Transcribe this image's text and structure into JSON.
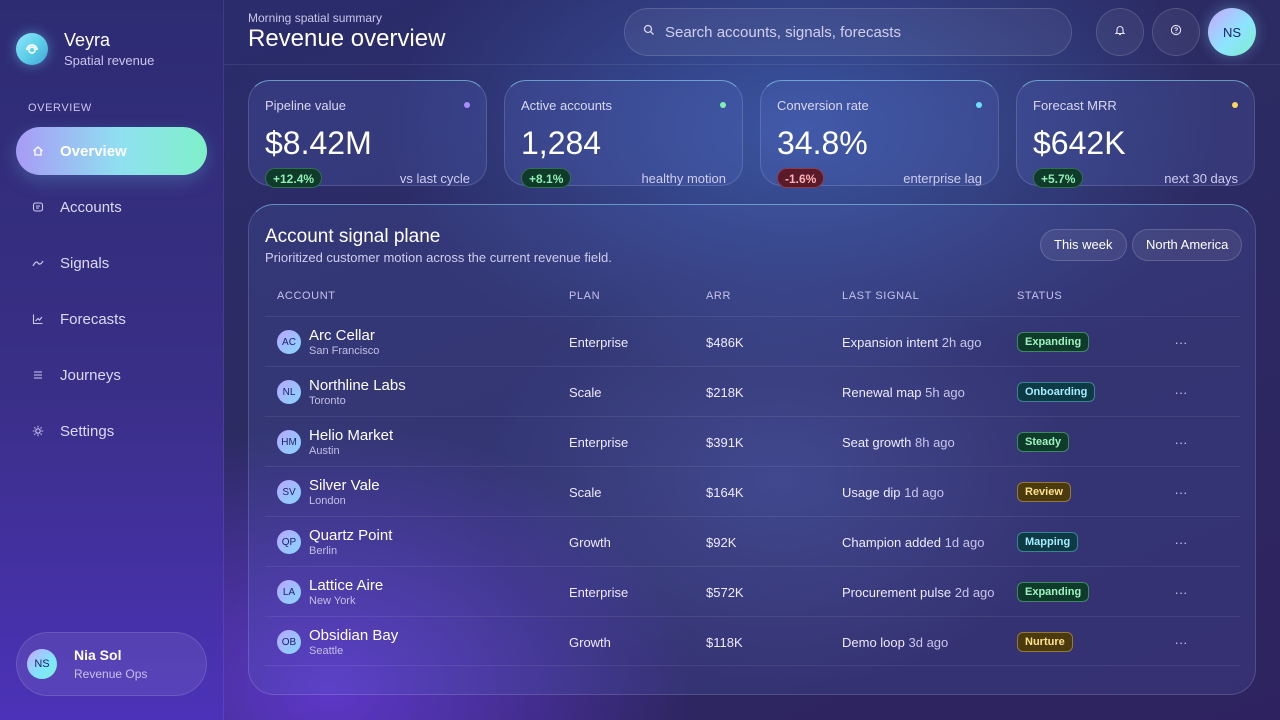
{
  "brand": {
    "name": "Veyra",
    "subtitle": "Spatial revenue"
  },
  "nav": {
    "section": "OVERVIEW",
    "items": [
      {
        "label": "Overview",
        "icon": "home-icon",
        "active": true
      },
      {
        "label": "Accounts",
        "icon": "accounts-icon"
      },
      {
        "label": "Signals",
        "icon": "signal-icon"
      },
      {
        "label": "Forecasts",
        "icon": "chart-icon"
      },
      {
        "label": "Journeys",
        "icon": "journeys-icon"
      },
      {
        "label": "Settings",
        "icon": "gear-icon"
      }
    ]
  },
  "user": {
    "initials": "NS",
    "name": "Nia Sol",
    "role": "Revenue Ops"
  },
  "header": {
    "kicker": "Morning spatial summary",
    "title": "Revenue overview",
    "search_placeholder": "Search accounts, signals, forecasts",
    "avatar_initials": "NS"
  },
  "kpis": [
    {
      "label": "Pipeline value",
      "value": "$8.42M",
      "delta": "+12.4%",
      "trend": "up",
      "note": "vs last cycle",
      "dot_color": "#a98cff"
    },
    {
      "label": "Active accounts",
      "value": "1,284",
      "delta": "+8.1%",
      "trend": "up",
      "note": "healthy motion",
      "dot_color": "#7ff0b0"
    },
    {
      "label": "Conversion rate",
      "value": "34.8%",
      "delta": "-1.6%",
      "trend": "down",
      "note": "enterprise lag",
      "dot_color": "#6ee0ff"
    },
    {
      "label": "Forecast MRR",
      "value": "$642K",
      "delta": "+5.7%",
      "trend": "up",
      "note": "next 30 days",
      "dot_color": "#ffd55a"
    }
  ],
  "panel": {
    "title": "Account signal plane",
    "subtitle": "Prioritized customer motion across the current revenue field.",
    "filters": [
      "This week",
      "North America"
    ],
    "columns": [
      "ACCOUNT",
      "PLAN",
      "ARR",
      "LAST SIGNAL",
      "STATUS"
    ],
    "rows": [
      {
        "initials": "AC",
        "name": "Arc Cellar",
        "city": "San Francisco",
        "plan": "Enterprise",
        "arr": "$486K",
        "signal": "Expansion intent",
        "time": "2h ago",
        "status": "Expanding",
        "tone": "green"
      },
      {
        "initials": "NL",
        "name": "Northline Labs",
        "city": "Toronto",
        "plan": "Scale",
        "arr": "$218K",
        "signal": "Renewal map",
        "time": "5h ago",
        "status": "Onboarding",
        "tone": "teal"
      },
      {
        "initials": "HM",
        "name": "Helio Market",
        "city": "Austin",
        "plan": "Enterprise",
        "arr": "$391K",
        "signal": "Seat growth",
        "time": "8h ago",
        "status": "Steady",
        "tone": "green"
      },
      {
        "initials": "SV",
        "name": "Silver Vale",
        "city": "London",
        "plan": "Scale",
        "arr": "$164K",
        "signal": "Usage dip",
        "time": "1d ago",
        "status": "Review",
        "tone": "yellow"
      },
      {
        "initials": "QP",
        "name": "Quartz Point",
        "city": "Berlin",
        "plan": "Growth",
        "arr": "$92K",
        "signal": "Champion added",
        "time": "1d ago",
        "status": "Mapping",
        "tone": "teal"
      },
      {
        "initials": "LA",
        "name": "Lattice Aire",
        "city": "New York",
        "plan": "Enterprise",
        "arr": "$572K",
        "signal": "Procurement pulse",
        "time": "2d ago",
        "status": "Expanding",
        "tone": "green"
      },
      {
        "initials": "OB",
        "name": "Obsidian Bay",
        "city": "Seattle",
        "plan": "Growth",
        "arr": "$118K",
        "signal": "Demo loop",
        "time": "3d ago",
        "status": "Nurture",
        "tone": "yellow"
      }
    ],
    "row_action": "···"
  }
}
